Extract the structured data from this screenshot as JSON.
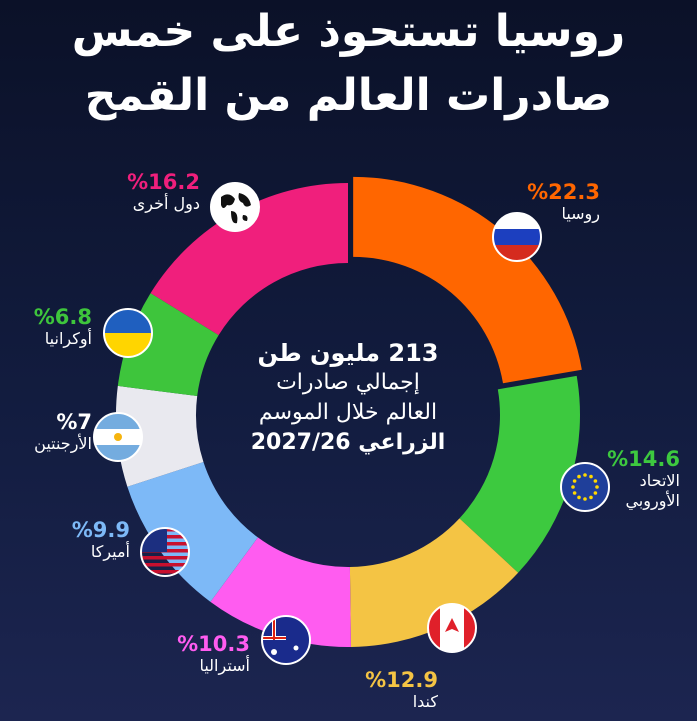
{
  "chart_data": {
    "type": "donut",
    "title": "روسيا تستحوذ على خمس",
    "subtitle": "صادرات العالم من القمح",
    "center_text": [
      "213 مليون طن",
      "إجمالي صادرات",
      "العالم خلال الموسم",
      "الزراعي 2027/26"
    ],
    "categories": [
      "روسيا",
      "الاتحاد الأوروبي",
      "كندا",
      "أستراليا",
      "أميركا",
      "الأرجنتين",
      "أوكرانيا",
      "دول أخرى"
    ],
    "values": [
      22.3,
      14.6,
      12.9,
      10.3,
      9.9,
      7,
      6.8,
      16.2
    ],
    "value_labels": [
      "%22.3",
      "%14.6",
      "%12.9",
      "%10.3",
      "%9.9",
      "%7",
      "%6.8",
      "%16.2"
    ],
    "colors": [
      "#ff6600",
      "#3dc93f",
      "#f4c444",
      "#ff5cf0",
      "#7db9f7",
      "#e9e9ef",
      "#3ec53c",
      "#f01f7c"
    ]
  }
}
